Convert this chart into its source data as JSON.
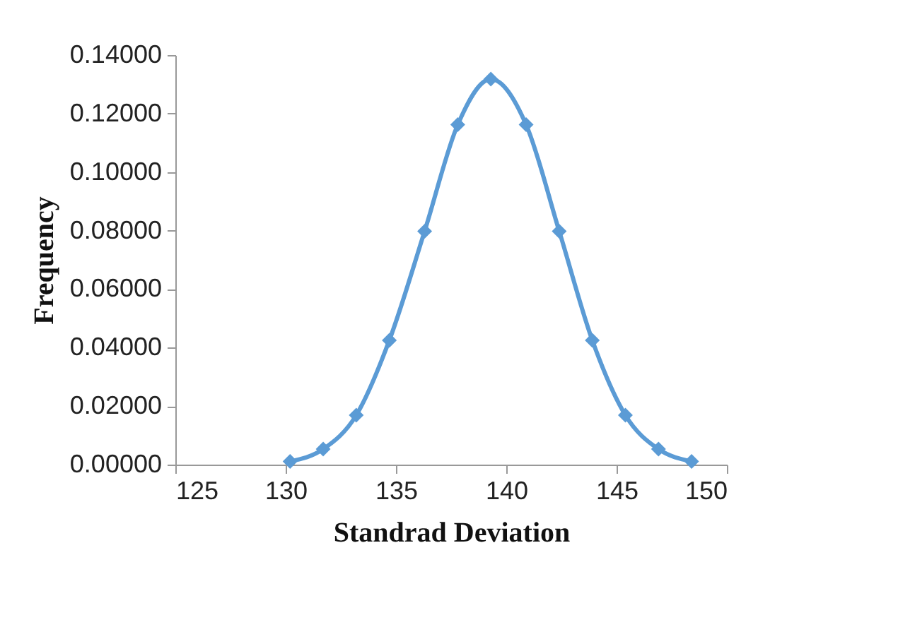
{
  "chart_data": {
    "type": "line",
    "xlabel": "Standrad Deviation",
    "ylabel": "Frequency",
    "x": [
      130.2,
      131.7,
      133.2,
      134.7,
      136.3,
      137.8,
      139.3,
      140.9,
      142.4,
      143.9,
      145.4,
      146.9,
      148.4
    ],
    "series": [
      {
        "color": "#5b9bd5",
        "values": [
          0.0011,
          0.0053,
          0.0169,
          0.0425,
          0.0798,
          0.1162,
          0.1318,
          0.1162,
          0.0798,
          0.0425,
          0.0169,
          0.0053,
          0.0011
        ]
      }
    ],
    "xlim": [
      125,
      150
    ],
    "xticks": [
      125,
      130,
      135,
      140,
      145,
      150
    ],
    "ylim": [
      0,
      0.14
    ],
    "yticks": [
      {
        "value": 0,
        "label": "0.00000"
      },
      {
        "value": 0.02,
        "label": "0.02000"
      },
      {
        "value": 0.04,
        "label": "0.04000"
      },
      {
        "value": 0.06,
        "label": "0.06000"
      },
      {
        "value": 0.08,
        "label": "0.08000"
      },
      {
        "value": 0.1,
        "label": "0.10000"
      },
      {
        "value": 0.12,
        "label": "0.12000"
      },
      {
        "value": 0.14,
        "label": "0.14000"
      }
    ],
    "grid": false,
    "legend": false,
    "marker": "diamond",
    "line_style": "solid"
  }
}
